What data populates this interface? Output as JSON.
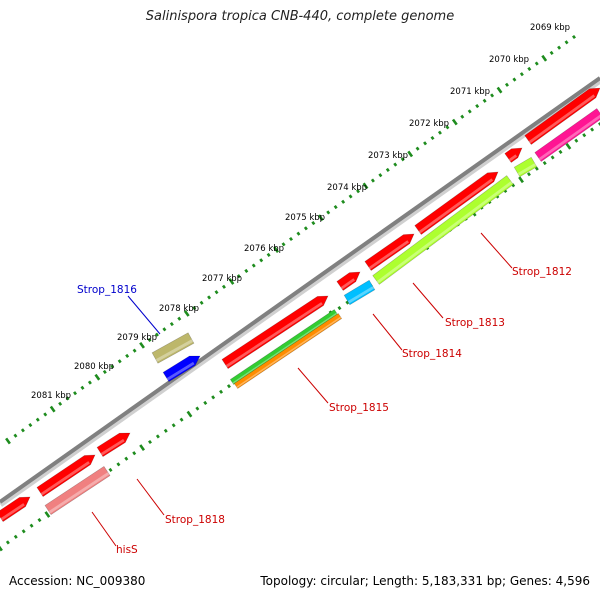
{
  "title": "Salinispora tropica CNB-440, complete genome",
  "footer": {
    "accession": "Accession: NC_009380",
    "summary": "Topology: circular; Length: 5,183,331 bp; Genes: 4,596"
  },
  "ticks": [
    "2069 kbp",
    "2070 kbp",
    "2071 kbp",
    "2072 kbp",
    "2073 kbp",
    "2074 kbp",
    "2075 kbp",
    "2076 kbp",
    "2077 kbp",
    "2078 kbp",
    "2079 kbp",
    "2080 kbp",
    "2081 kbp"
  ],
  "gene_labels": [
    {
      "text": "Strop_1812",
      "color": "#cc0000"
    },
    {
      "text": "Strop_1813",
      "color": "#cc0000"
    },
    {
      "text": "Strop_1814",
      "color": "#cc0000"
    },
    {
      "text": "Strop_1815",
      "color": "#cc0000"
    },
    {
      "text": "Strop_1816",
      "color": "#0000cc"
    },
    {
      "text": "Strop_1818",
      "color": "#cc0000"
    },
    {
      "text": "hisS",
      "color": "#cc0000"
    }
  ],
  "colors": {
    "cds": "#ff0000",
    "backbone": "#808080",
    "ticks": "#1e8c1e",
    "gene_1812": "#adff2f",
    "gene_1813": "#00bfff",
    "gene_1815_a": "#32cd32",
    "gene_1815_b": "#ff8c00",
    "gene_1816_a": "#bdb76b",
    "gene_1816_b": "#0000ff",
    "gene_hisS": "#f08080",
    "gene_top": "#ff1493"
  }
}
